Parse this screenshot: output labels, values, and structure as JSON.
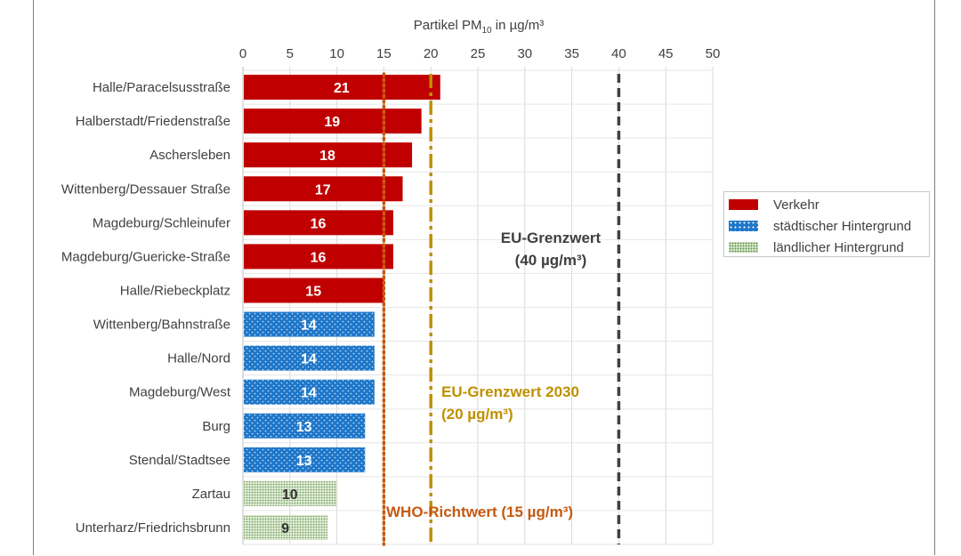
{
  "chart_data": {
    "type": "bar",
    "orientation": "horizontal",
    "xlabel_prefix": "Partikel PM",
    "xlabel_sub": "10",
    "xlabel_suffix": " in µg/m³",
    "xlim": [
      0,
      50
    ],
    "xticks": [
      0,
      5,
      10,
      15,
      20,
      25,
      30,
      35,
      40,
      45,
      50
    ],
    "grid": true,
    "categories": [
      "Halle/Paracelsusstraße",
      "Halberstadt/Friedenstraße",
      "Aschersleben",
      "Wittenberg/Dessauer Straße",
      "Magdeburg/Schleinufer",
      "Magdeburg/Guericke-Straße",
      "Halle/Riebeckplatz",
      "Wittenberg/Bahnstraße",
      "Halle/Nord",
      "Magdeburg/West",
      "Burg",
      "Stendal/Stadtsee",
      "Zartau",
      "Unterharz/Friedrichsbrunn"
    ],
    "values": [
      21,
      19,
      18,
      17,
      16,
      16,
      15,
      14,
      14,
      14,
      13,
      13,
      10,
      9
    ],
    "groups": [
      "verkehr",
      "verkehr",
      "verkehr",
      "verkehr",
      "verkehr",
      "verkehr",
      "verkehr",
      "staedtisch",
      "staedtisch",
      "staedtisch",
      "staedtisch",
      "staedtisch",
      "laendlich",
      "laendlich"
    ],
    "series": [
      {
        "key": "verkehr",
        "name": "Verkehr",
        "color": "#c00000"
      },
      {
        "key": "staedtisch",
        "name": "städtischer Hintergrund",
        "color": "#1f77c9"
      },
      {
        "key": "laendlich",
        "name": "ländlicher Hintergrund",
        "color": "#a9c79a"
      }
    ],
    "reference_lines": [
      {
        "value": 15,
        "style": "dotted",
        "color": "#c55a11",
        "label": "WHO-Richtwert (15 µg/m³)"
      },
      {
        "value": 20,
        "style": "dashdot",
        "color": "#bf9000",
        "label_line1": "EU-Grenzwert 2030",
        "label_line2": "(20 µg/m³)"
      },
      {
        "value": 40,
        "style": "dashed",
        "color": "#404040",
        "label_line1": "EU-Grenzwert",
        "label_line2": "(40 µg/m³)"
      }
    ],
    "legend_position": "right"
  }
}
